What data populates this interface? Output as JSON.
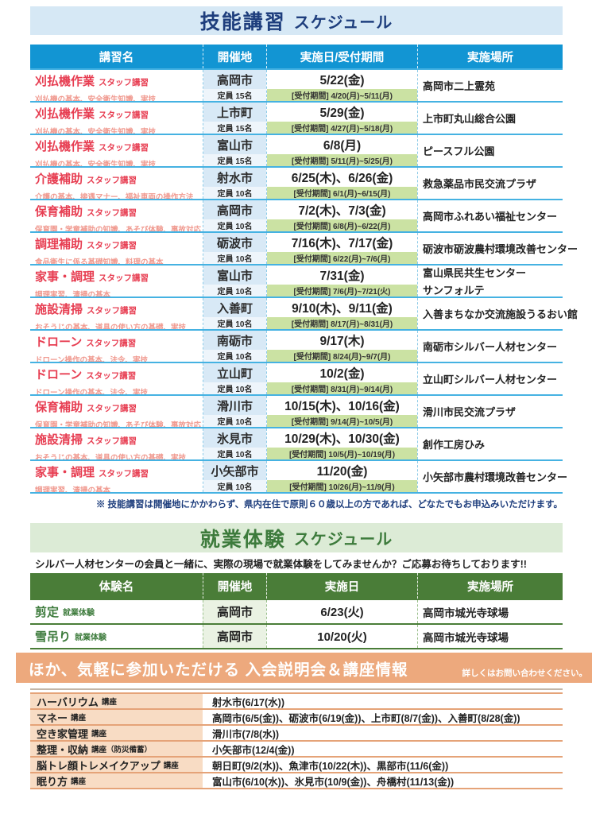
{
  "colors": {
    "skill_header_blue": "#1295d3",
    "skill_banner_bg": "#d6e8f5",
    "skill_title_navy": "#1e3e7d",
    "course_red": "#e73e52",
    "course_desc_pink": "#f09a90",
    "period_green_bg": "#cbe2a3",
    "work_green": "#4a7d38",
    "work_banner_bg": "#dcebd6",
    "info_orange": "#eda97d",
    "info_cell_bg": "#f8dcc4"
  },
  "skill_section": {
    "title_main": "技能講習",
    "title_sub": "スケジュール",
    "columns": [
      "講習名",
      "開催地",
      "実施日/受付期間",
      "実施場所"
    ],
    "rows": [
      {
        "name": "刈払機作業",
        "tag": "スタッフ講習",
        "desc": "刈払機の基本、安全衛生知識、実技",
        "city": "高岡市",
        "capacity": "定員 15名",
        "date": "5/22(金)",
        "period": "[受付期間] 4/20(月)~5/11(月)",
        "venue": "高岡市二上霊苑",
        "venue2": ""
      },
      {
        "name": "刈払機作業",
        "tag": "スタッフ講習",
        "desc": "刈払機の基本、安全衛生知識、実技",
        "city": "上市町",
        "capacity": "定員 15名",
        "date": "5/29(金)",
        "period": "[受付期間] 4/27(月)~5/18(月)",
        "venue": "上市町丸山総合公園",
        "venue2": ""
      },
      {
        "name": "刈払機作業",
        "tag": "スタッフ講習",
        "desc": "刈払機の基本、安全衛生知識、実技",
        "city": "富山市",
        "capacity": "定員 15名",
        "date": "6/8(月)",
        "period": "[受付期間] 5/11(月)~5/25(月)",
        "venue": "ピースフル公園",
        "venue2": ""
      },
      {
        "name": "介護補助",
        "tag": "スタッフ講習",
        "desc": "介護の基本、接遇マナー、福祉車両の操作方法",
        "city": "射水市",
        "capacity": "定員 10名",
        "date": "6/25(木)、6/26(金)",
        "period": "[受付期間] 6/1(月)~6/15(月)",
        "venue": "救急薬品市民交流プラザ",
        "venue2": ""
      },
      {
        "name": "保育補助",
        "tag": "スタッフ講習",
        "desc": "保育園・学童補助の知識、あそび体験、事故対応",
        "city": "高岡市",
        "capacity": "定員 10名",
        "date": "7/2(木)、7/3(金)",
        "period": "[受付期間] 6/8(月)~6/22(月)",
        "venue": "高岡市ふれあい福祉センター",
        "venue2": ""
      },
      {
        "name": "調理補助",
        "tag": "スタッフ講習",
        "desc": "食品衛生に係る基礎知識、料理の基本",
        "city": "砺波市",
        "capacity": "定員 10名",
        "date": "7/16(木)、7/17(金)",
        "period": "[受付期間] 6/22(月)~7/6(月)",
        "venue": "砺波市砺波農村環境改善センター",
        "venue2": ""
      },
      {
        "name": "家事・調理",
        "tag": "スタッフ講習",
        "desc": "調理実習、清掃の基本",
        "city": "富山市",
        "capacity": "定員 10名",
        "date": "7/31(金)",
        "period": "[受付期間] 7/6(月)~7/21(火)",
        "venue": "富山県民共生センター",
        "venue2": "サンフォルテ"
      },
      {
        "name": "施設清掃",
        "tag": "スタッフ講習",
        "desc": "おそうじの基本、道具の使い方の基礎、実技",
        "city": "入善町",
        "capacity": "定員 10名",
        "date": "9/10(木)、9/11(金)",
        "period": "[受付期間] 8/17(月)~8/31(月)",
        "venue": "入善まちなか交流施設うるおい館",
        "venue2": ""
      },
      {
        "name": "ドローン",
        "tag": "スタッフ講習",
        "desc": "ドローン操作の基本、法令、実技",
        "city": "南砺市",
        "capacity": "定員 10名",
        "date": "9/17(木)",
        "period": "[受付期間] 8/24(月)~9/7(月)",
        "venue": "南砺市シルバー人材センター",
        "venue2": ""
      },
      {
        "name": "ドローン",
        "tag": "スタッフ講習",
        "desc": "ドローン操作の基本、法令、実技",
        "city": "立山町",
        "capacity": "定員 10名",
        "date": "10/2(金)",
        "period": "[受付期間] 8/31(月)~9/14(月)",
        "venue": "立山町シルバー人材センター",
        "venue2": ""
      },
      {
        "name": "保育補助",
        "tag": "スタッフ講習",
        "desc": "保育園・学童補助の知識、あそび体験、事故対応",
        "city": "滑川市",
        "capacity": "定員 10名",
        "date": "10/15(木)、10/16(金)",
        "period": "[受付期間] 9/14(月)~10/5(月)",
        "venue": "滑川市民交流プラザ",
        "venue2": ""
      },
      {
        "name": "施設清掃",
        "tag": "スタッフ講習",
        "desc": "おそうじの基本、道具の使い方の基礎、実技",
        "city": "氷見市",
        "capacity": "定員 10名",
        "date": "10/29(木)、10/30(金)",
        "period": "[受付期間] 10/5(月)~10/19(月)",
        "venue": "創作工房ひみ",
        "venue2": ""
      },
      {
        "name": "家事・調理",
        "tag": "スタッフ講習",
        "desc": "調理実習、清掃の基本",
        "city": "小矢部市",
        "capacity": "定員 10名",
        "date": "11/20(金)",
        "period": "[受付期間] 10/26(月)~11/9(月)",
        "venue": "小矢部市農村環境改善センター",
        "venue2": ""
      }
    ],
    "note": "※ 技能講習は開催地にかかわらず、県内在住で原則６０歳以上の方であれば、どなたでもお申込みいただけます。"
  },
  "work_section": {
    "title_main": "就業体験",
    "title_sub": "スケジュール",
    "lead": "シルバー人材センターの会員と一緒に、実際の現場で就業体験をしてみませんか？ご応募お待ちしております!!",
    "columns": [
      "体験名",
      "開催地",
      "実施日",
      "実施場所"
    ],
    "rows": [
      {
        "name": "剪定",
        "tag": "就業体験",
        "city": "高岡市",
        "date": "6/23(火)",
        "venue": "高岡市城光寺球場"
      },
      {
        "name": "雪吊り",
        "tag": "就業体験",
        "city": "高岡市",
        "date": "10/20(火)",
        "venue": "高岡市城光寺球場"
      }
    ]
  },
  "info_section": {
    "title": "ほか、気軽に参加いただける 入会説明会＆講座情報",
    "contact": "詳しくはお問い合わせください。",
    "rows": [
      {
        "name": "ハーバリウム",
        "tag": "講座",
        "schedule": "射水市(6/17(水))"
      },
      {
        "name": "マネー",
        "tag": "講座",
        "schedule": "高岡市(6/5(金))、砺波市(6/19(金))、上市町(8/7(金))、入善町(8/28(金))"
      },
      {
        "name": "空き家管理",
        "tag": "講座",
        "schedule": "滑川市(7/8(水))"
      },
      {
        "name": "整理・収納",
        "tag": "講座（防災備蓄）",
        "schedule": "小矢部市(12/4(金))"
      },
      {
        "name": "脳トレ顔トレメイクアップ",
        "tag": "講座",
        "schedule": "朝日町(9/2(水))、魚津市(10/22(木))、黒部市(11/6(金))"
      },
      {
        "name": "眠り方",
        "tag": "講座",
        "schedule": "富山市(6/10(水))、氷見市(10/9(金))、舟橋村(11/13(金))"
      }
    ]
  }
}
